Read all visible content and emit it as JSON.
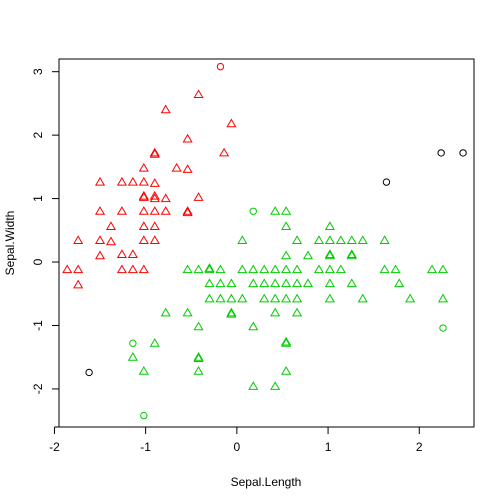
{
  "chart_data": {
    "type": "scatter",
    "xlabel": "Sepal.Length",
    "ylabel": "Sepal.Width",
    "xlim": [
      -1.95,
      2.6
    ],
    "ylim": [
      -2.6,
      3.2
    ],
    "x_ticks": [
      -2,
      -1,
      0,
      1,
      2
    ],
    "y_ticks": [
      -2,
      -1,
      0,
      1,
      2,
      3
    ],
    "grid": false,
    "legend": "none",
    "colors": {
      "red": "#ff0000",
      "green": "#00cd00",
      "black": "#000000"
    },
    "series": [
      {
        "marker": "triangle",
        "color": "#ff0000",
        "points": [
          [
            -0.54,
            1.94
          ],
          [
            -0.42,
            2.64
          ],
          [
            -0.78,
            2.4
          ],
          [
            -1.02,
            1.48
          ],
          [
            -0.06,
            2.18
          ],
          [
            -0.9,
            1.72
          ],
          [
            -0.9,
            1.7
          ],
          [
            -0.66,
            1.48
          ],
          [
            -0.54,
            1.46
          ],
          [
            -0.14,
            1.72
          ],
          [
            -1.26,
            1.26
          ],
          [
            -1.14,
            1.26
          ],
          [
            -1.02,
            1.26
          ],
          [
            -1.5,
            1.26
          ],
          [
            -0.9,
            1.24
          ],
          [
            -1.02,
            1.04
          ],
          [
            -0.9,
            1.04
          ],
          [
            -1.02,
            1.02
          ],
          [
            -0.9,
            1.0
          ],
          [
            -0.78,
            1.0
          ],
          [
            -0.42,
            1.02
          ],
          [
            -1.5,
            0.8
          ],
          [
            -1.26,
            0.8
          ],
          [
            -1.02,
            0.8
          ],
          [
            -0.9,
            0.8
          ],
          [
            -0.78,
            0.8
          ],
          [
            -0.54,
            0.8
          ],
          [
            -0.54,
            0.78
          ],
          [
            -1.38,
            0.56
          ],
          [
            -1.02,
            0.56
          ],
          [
            -0.9,
            0.56
          ],
          [
            -1.02,
            0.34
          ],
          [
            -0.9,
            0.34
          ],
          [
            -1.5,
            0.34
          ],
          [
            -1.38,
            0.32
          ],
          [
            -1.74,
            0.34
          ],
          [
            -1.26,
            0.12
          ],
          [
            -1.14,
            0.12
          ],
          [
            -1.5,
            0.1
          ],
          [
            -1.86,
            -0.12
          ],
          [
            -1.74,
            -0.12
          ],
          [
            -1.26,
            -0.12
          ],
          [
            -1.14,
            -0.12
          ],
          [
            -1.02,
            -0.12
          ],
          [
            -1.74,
            -0.36
          ]
        ]
      },
      {
        "marker": "circle",
        "color": "#ff0000",
        "points": [
          [
            -0.18,
            3.08
          ]
        ]
      },
      {
        "marker": "triangle",
        "color": "#00cd00",
        "points": [
          [
            0.18,
            -1.96
          ],
          [
            0.42,
            -1.96
          ],
          [
            0.54,
            -1.72
          ],
          [
            -1.14,
            -1.5
          ],
          [
            -0.42,
            -1.5
          ],
          [
            -0.42,
            -1.52
          ],
          [
            -1.02,
            -1.72
          ],
          [
            -0.42,
            -1.72
          ],
          [
            0.54,
            -1.26
          ],
          [
            0.54,
            -1.28
          ],
          [
            -0.9,
            -1.28
          ],
          [
            0.18,
            -1.02
          ],
          [
            -0.42,
            -1.02
          ],
          [
            -0.54,
            -0.8
          ],
          [
            -0.78,
            -0.8
          ],
          [
            -0.06,
            -0.8
          ],
          [
            -0.06,
            -0.82
          ],
          [
            0.42,
            -0.8
          ],
          [
            0.66,
            -0.8
          ],
          [
            -0.3,
            -0.58
          ],
          [
            -0.18,
            -0.58
          ],
          [
            -0.06,
            -0.58
          ],
          [
            0.06,
            -0.58
          ],
          [
            0.3,
            -0.58
          ],
          [
            0.42,
            -0.58
          ],
          [
            0.54,
            -0.58
          ],
          [
            0.66,
            -0.58
          ],
          [
            1.02,
            -0.58
          ],
          [
            1.38,
            -0.58
          ],
          [
            1.9,
            -0.58
          ],
          [
            2.26,
            -0.58
          ],
          [
            -0.3,
            -0.34
          ],
          [
            -0.18,
            -0.34
          ],
          [
            -0.06,
            -0.34
          ],
          [
            0.18,
            -0.34
          ],
          [
            0.3,
            -0.34
          ],
          [
            0.42,
            -0.34
          ],
          [
            0.54,
            -0.34
          ],
          [
            0.66,
            -0.34
          ],
          [
            0.78,
            -0.34
          ],
          [
            1.02,
            -0.34
          ],
          [
            1.26,
            -0.34
          ],
          [
            1.78,
            -0.34
          ],
          [
            -0.3,
            -0.12
          ],
          [
            -0.18,
            -0.12
          ],
          [
            -0.42,
            -0.12
          ],
          [
            -0.54,
            -0.12
          ],
          [
            -0.3,
            -0.1
          ],
          [
            0.06,
            -0.12
          ],
          [
            0.18,
            -0.12
          ],
          [
            0.3,
            -0.12
          ],
          [
            0.42,
            -0.12
          ],
          [
            0.54,
            -0.12
          ],
          [
            0.66,
            -0.12
          ],
          [
            0.9,
            -0.12
          ],
          [
            1.02,
            -0.12
          ],
          [
            1.14,
            -0.12
          ],
          [
            1.62,
            -0.12
          ],
          [
            1.74,
            -0.12
          ],
          [
            2.14,
            -0.12
          ],
          [
            2.26,
            -0.12
          ],
          [
            0.54,
            0.1
          ],
          [
            0.78,
            0.1
          ],
          [
            1.02,
            0.1
          ],
          [
            1.02,
            0.12
          ],
          [
            1.26,
            0.1
          ],
          [
            1.26,
            0.12
          ],
          [
            0.06,
            0.34
          ],
          [
            0.66,
            0.34
          ],
          [
            0.9,
            0.34
          ],
          [
            1.02,
            0.34
          ],
          [
            1.14,
            0.34
          ],
          [
            1.26,
            0.34
          ],
          [
            1.38,
            0.34
          ],
          [
            1.62,
            0.34
          ],
          [
            0.54,
            0.56
          ],
          [
            1.02,
            0.56
          ],
          [
            0.42,
            0.8
          ],
          [
            0.54,
            0.8
          ]
        ]
      },
      {
        "marker": "circle",
        "color": "#00cd00",
        "points": [
          [
            0.18,
            0.8
          ],
          [
            -1.14,
            -1.28
          ],
          [
            2.26,
            -1.04
          ],
          [
            -1.02,
            -2.42
          ]
        ]
      },
      {
        "marker": "circle",
        "color": "#000000",
        "points": [
          [
            2.24,
            1.72
          ],
          [
            2.48,
            1.72
          ],
          [
            1.64,
            1.26
          ],
          [
            -1.62,
            -1.74
          ]
        ]
      }
    ]
  }
}
